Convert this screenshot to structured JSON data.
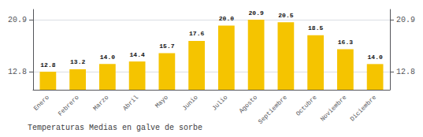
{
  "chart_data": {
    "type": "bar",
    "title": "Temperaturas Medias en galve de sorbe",
    "categories": [
      "Enero",
      "Febrero",
      "Marzo",
      "Abril",
      "Mayo",
      "Junio",
      "Julio",
      "Agosto",
      "Septiembre",
      "Octubre",
      "Noviembre",
      "Diciembre"
    ],
    "values": [
      12.8,
      13.2,
      14.0,
      14.4,
      15.7,
      17.6,
      20.0,
      20.9,
      20.5,
      18.5,
      16.3,
      14.0
    ],
    "value_labels": [
      "12.8",
      "13.2",
      "14.0",
      "14.4",
      "15.7",
      "17.6",
      "20.0",
      "20.9",
      "20.5",
      "18.5",
      "16.3",
      "14.0"
    ],
    "data_labels": true,
    "color": "#F5C400",
    "ylim": [
      10.0,
      22.5
    ],
    "yticks": [
      12.8,
      20.9
    ],
    "y2lim": [
      10.0,
      22.5
    ],
    "y2ticks": [
      12.8,
      20.9
    ],
    "grid": true
  }
}
